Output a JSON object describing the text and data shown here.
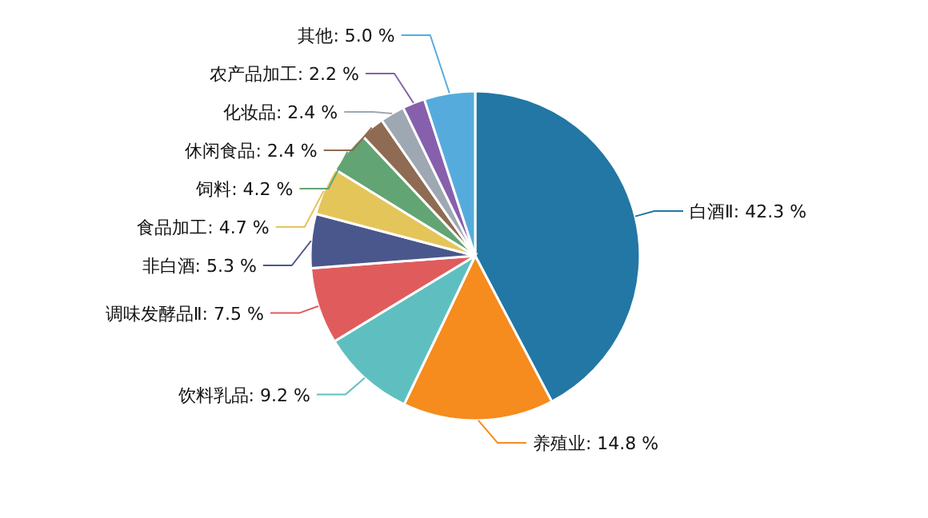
{
  "chart_data": {
    "type": "pie",
    "categories": [
      "白酒Ⅱ",
      "养殖业",
      "饮料乳品",
      "调味发酵品Ⅱ",
      "非白酒",
      "食品加工",
      "饲料",
      "休闲食品",
      "化妆品",
      "农产品加工",
      "其他"
    ],
    "values": [
      42.3,
      14.8,
      9.2,
      7.5,
      5.3,
      4.7,
      4.2,
      2.4,
      2.4,
      2.2,
      5.0
    ],
    "value_labels": [
      "42.3 %",
      "14.8 %",
      "9.2 %",
      "7.5 %",
      "5.3 %",
      "4.7 %",
      "4.2 %",
      "2.4 %",
      "2.4 %",
      "2.2 %",
      "5.0 %"
    ],
    "colors": [
      "#2277a4",
      "#f68b1e",
      "#5fbfc0",
      "#e05c5c",
      "#4a578c",
      "#e4c55a",
      "#62a473",
      "#8e6b52",
      "#9ea8b2",
      "#8760ad",
      "#55acdc"
    ]
  }
}
